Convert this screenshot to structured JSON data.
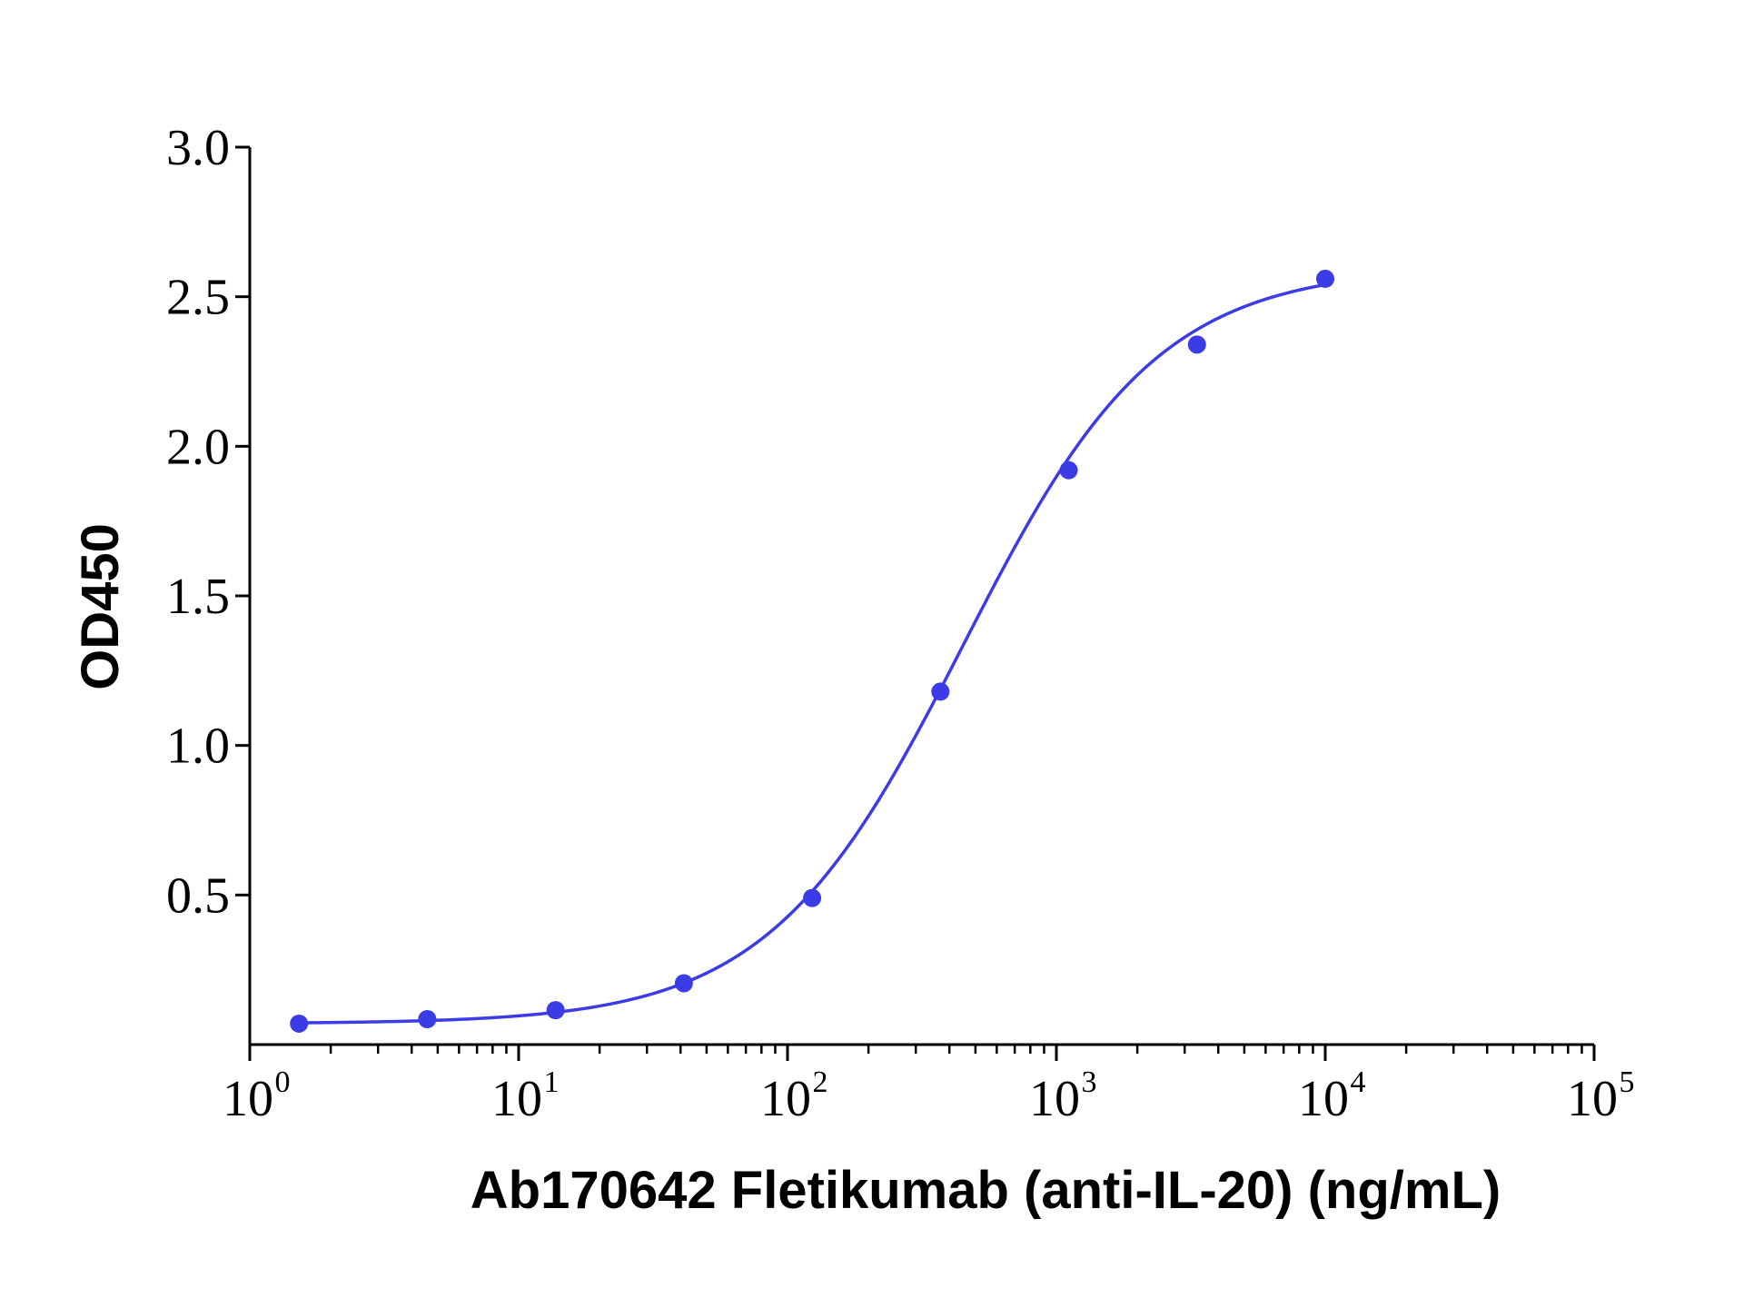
{
  "chart_data": {
    "type": "scatter",
    "title": "",
    "xlabel": "Ab170642 Fletikumab (anti-IL-20) (ng/mL)",
    "ylabel": "OD450",
    "x_scale": "log",
    "xlim": [
      1,
      100000
    ],
    "ylim": [
      0,
      3.0
    ],
    "y_ticks": [
      "0.5",
      "1.0",
      "1.5",
      "2.0",
      "2.5",
      "3.0"
    ],
    "x_ticks": [
      {
        "base": "10",
        "exp": "0"
      },
      {
        "base": "10",
        "exp": "1"
      },
      {
        "base": "10",
        "exp": "2"
      },
      {
        "base": "10",
        "exp": "3"
      },
      {
        "base": "10",
        "exp": "4"
      },
      {
        "base": "10",
        "exp": "5"
      }
    ],
    "grid": false,
    "colors": {
      "series": "#3c3ce6"
    },
    "series": [
      {
        "x": [
          1.524,
          4.572,
          13.717,
          41.152,
          123.457,
          370.37,
          1111.11,
          3333.33,
          10000
        ],
        "y": [
          0.07,
          0.085,
          0.115,
          0.205,
          0.49,
          1.18,
          1.92,
          2.34,
          2.56
        ]
      }
    ],
    "fit": {
      "type": "4PL",
      "bottom": 0.07,
      "top": 2.6,
      "ec50": 450,
      "hill": 1.2
    }
  }
}
